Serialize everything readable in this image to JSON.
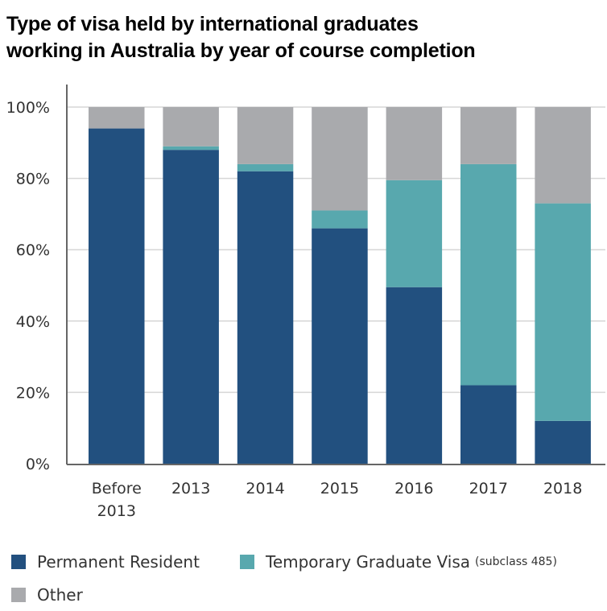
{
  "chart_data": {
    "type": "bar",
    "stacked": true,
    "title": [
      "Type of visa held by international graduates",
      "working in Australia by year of course completion"
    ],
    "categories": [
      [
        "Before",
        "2013"
      ],
      [
        "2013"
      ],
      [
        "2014"
      ],
      [
        "2015"
      ],
      [
        "2016"
      ],
      [
        "2017"
      ],
      [
        "2018"
      ]
    ],
    "series": [
      {
        "name": "Permanent Resident",
        "color": "#22507f",
        "values": [
          94,
          88,
          82,
          66,
          49.5,
          22,
          12
        ]
      },
      {
        "name": "Temporary Graduate Visa",
        "name_suffix": "(subclass 485)",
        "color": "#58a8ae",
        "values": [
          0,
          1,
          2,
          5,
          30,
          62,
          61
        ]
      },
      {
        "name": "Other",
        "color": "#a9aaad",
        "values": [
          6,
          11,
          16,
          29,
          20.5,
          16,
          27
        ]
      }
    ],
    "yticks": [
      "0%",
      "20%",
      "40%",
      "60%",
      "80%",
      "100%"
    ],
    "ylim": [
      0,
      100
    ],
    "grid": true,
    "legend_position": "bottom"
  }
}
